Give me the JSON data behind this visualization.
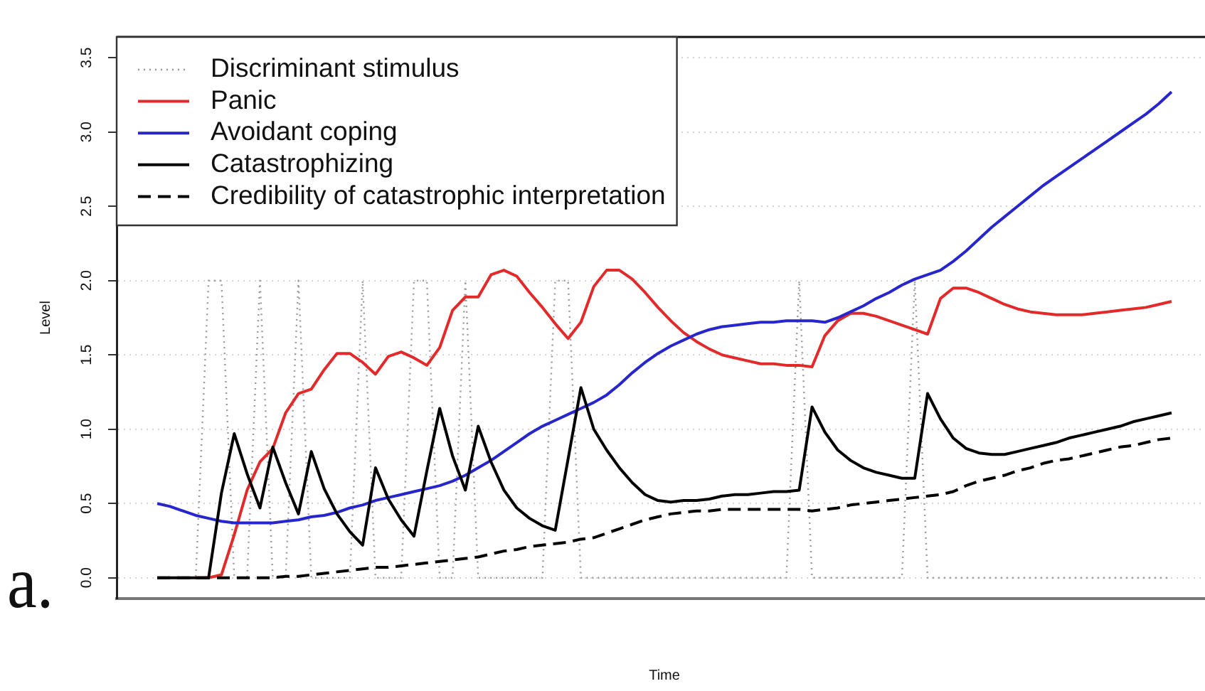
{
  "chart_data": {
    "type": "line",
    "xlabel": "Time",
    "ylabel": "Level",
    "annotations": [
      "a."
    ],
    "categories": [
      null,
      null,
      null,
      null,
      null,
      null,
      null,
      null,
      null,
      null,
      null,
      null,
      null,
      null,
      null,
      null,
      null,
      null,
      null,
      null,
      null,
      null,
      null,
      null,
      null,
      null,
      null,
      null,
      null,
      null,
      null,
      null,
      null,
      null,
      null,
      null,
      null,
      null,
      null,
      null,
      null,
      null,
      null,
      null,
      null,
      null,
      null,
      null,
      null,
      null,
      null,
      null,
      null,
      null,
      null,
      null,
      null,
      null,
      null,
      null,
      null,
      null,
      null,
      null,
      null,
      null,
      null,
      null,
      null,
      null,
      null,
      null,
      null,
      null,
      null,
      null,
      null,
      null,
      null,
      null
    ],
    "series": [
      {
        "name": "Discriminant stimulus",
        "color": "#999999",
        "line_style": "dotted",
        "values": [
          0,
          0,
          0,
          0,
          2,
          2,
          0,
          0,
          2,
          0,
          0,
          2,
          0,
          0,
          0,
          0,
          2,
          0,
          0,
          0,
          2,
          2,
          0,
          0,
          2,
          0,
          0,
          0,
          0,
          0,
          0,
          2,
          2,
          0,
          0,
          0,
          0,
          0,
          0,
          0,
          0,
          0,
          0,
          0,
          0,
          0,
          0,
          0,
          0,
          0,
          2,
          0,
          0,
          0,
          0,
          0,
          0,
          0,
          0,
          2,
          0,
          0,
          0,
          0,
          0,
          0,
          0,
          0,
          0,
          0,
          0,
          0,
          0,
          0,
          0,
          0,
          0,
          0,
          0,
          0
        ]
      },
      {
        "name": "Panic",
        "color": "#e32a2a",
        "line_style": "solid",
        "values": [
          null,
          null,
          null,
          0,
          0,
          0.02,
          0.29,
          0.59,
          0.78,
          0.87,
          1.11,
          1.24,
          1.27,
          1.4,
          1.51,
          1.51,
          1.45,
          1.37,
          1.49,
          1.52,
          1.48,
          1.43,
          1.55,
          1.8,
          1.89,
          1.89,
          2.04,
          2.07,
          2.03,
          1.92,
          1.82,
          1.71,
          1.61,
          1.72,
          1.96,
          2.07,
          2.07,
          2.01,
          1.92,
          1.82,
          1.73,
          1.65,
          1.59,
          1.54,
          1.5,
          1.48,
          1.46,
          1.44,
          1.44,
          1.43,
          1.43,
          1.42,
          1.63,
          1.73,
          1.78,
          1.78,
          1.76,
          1.73,
          1.7,
          1.67,
          1.64,
          1.88,
          1.95,
          1.95,
          1.92,
          1.88,
          1.84,
          1.81,
          1.79,
          1.78,
          1.77,
          1.77,
          1.77,
          1.78,
          1.79,
          1.8,
          1.81,
          1.82,
          1.84,
          1.86
        ]
      },
      {
        "name": "Avoidant coping",
        "color": "#2626cc",
        "line_style": "solid",
        "values": [
          0.5,
          0.48,
          0.45,
          0.42,
          0.4,
          0.38,
          0.37,
          0.37,
          0.37,
          0.37,
          0.38,
          0.39,
          0.41,
          0.42,
          0.44,
          0.47,
          0.49,
          0.52,
          0.54,
          0.56,
          0.58,
          0.6,
          0.62,
          0.65,
          0.69,
          0.74,
          0.79,
          0.85,
          0.91,
          0.97,
          1.02,
          1.06,
          1.1,
          1.14,
          1.18,
          1.23,
          1.3,
          1.38,
          1.45,
          1.51,
          1.56,
          1.6,
          1.64,
          1.67,
          1.69,
          1.7,
          1.71,
          1.72,
          1.72,
          1.73,
          1.73,
          1.73,
          1.72,
          1.75,
          1.79,
          1.83,
          1.88,
          1.92,
          1.97,
          2.01,
          2.04,
          2.07,
          2.13,
          2.2,
          2.28,
          2.36,
          2.43,
          2.5,
          2.57,
          2.64,
          2.7,
          2.76,
          2.82,
          2.88,
          2.94,
          3.0,
          3.06,
          3.12,
          3.19,
          3.27
        ]
      },
      {
        "name": "Catastrophizing",
        "color": "#000000",
        "line_style": "solid",
        "values": [
          0,
          0,
          0,
          0,
          0,
          0.57,
          0.97,
          0.7,
          0.47,
          0.88,
          0.64,
          0.43,
          0.85,
          0.6,
          0.43,
          0.31,
          0.22,
          0.74,
          0.53,
          0.39,
          0.28,
          0.72,
          1.14,
          0.82,
          0.59,
          1.02,
          0.78,
          0.59,
          0.47,
          0.4,
          0.35,
          0.32,
          0.8,
          1.28,
          1.0,
          0.86,
          0.74,
          0.64,
          0.56,
          0.52,
          0.51,
          0.52,
          0.52,
          0.53,
          0.55,
          0.56,
          0.56,
          0.57,
          0.58,
          0.58,
          0.59,
          1.15,
          0.98,
          0.86,
          0.79,
          0.74,
          0.71,
          0.69,
          0.67,
          0.67,
          1.24,
          1.07,
          0.94,
          0.87,
          0.84,
          0.83,
          0.83,
          0.85,
          0.87,
          0.89,
          0.91,
          0.94,
          0.96,
          0.98,
          1.0,
          1.02,
          1.05,
          1.07,
          1.09,
          1.11
        ]
      },
      {
        "name": "Credibility of catastrophic interpretation",
        "color": "#000000",
        "line_style": "dashed",
        "values": [
          0,
          0,
          0,
          0,
          0,
          0,
          0,
          0,
          0,
          0,
          0.01,
          0.01,
          0.02,
          0.03,
          0.04,
          0.05,
          0.06,
          0.07,
          0.07,
          0.08,
          0.09,
          0.1,
          0.11,
          0.12,
          0.13,
          0.14,
          0.16,
          0.18,
          0.19,
          0.21,
          0.22,
          0.23,
          0.24,
          0.26,
          0.27,
          0.3,
          0.33,
          0.36,
          0.39,
          0.41,
          0.43,
          0.44,
          0.45,
          0.45,
          0.46,
          0.46,
          0.46,
          0.46,
          0.46,
          0.46,
          0.46,
          0.45,
          0.46,
          0.47,
          0.49,
          0.5,
          0.51,
          0.52,
          0.53,
          0.54,
          0.55,
          0.56,
          0.58,
          0.62,
          0.65,
          0.67,
          0.69,
          0.72,
          0.74,
          0.77,
          0.79,
          0.8,
          0.82,
          0.84,
          0.86,
          0.88,
          0.89,
          0.91,
          0.93,
          0.94
        ]
      }
    ],
    "ylim": [
      -0.14,
      3.64
    ],
    "yticks": [
      {
        "value": 0,
        "label": "0.0"
      },
      0.5,
      {
        "value": 1,
        "label": "1.0"
      },
      1.5,
      {
        "value": 2,
        "label": "2.0"
      },
      2.5,
      {
        "value": 3,
        "label": "3.0"
      },
      3.5
    ],
    "tick_labels": "y",
    "grid": "y",
    "legend": "top left",
    "marker": "none"
  }
}
